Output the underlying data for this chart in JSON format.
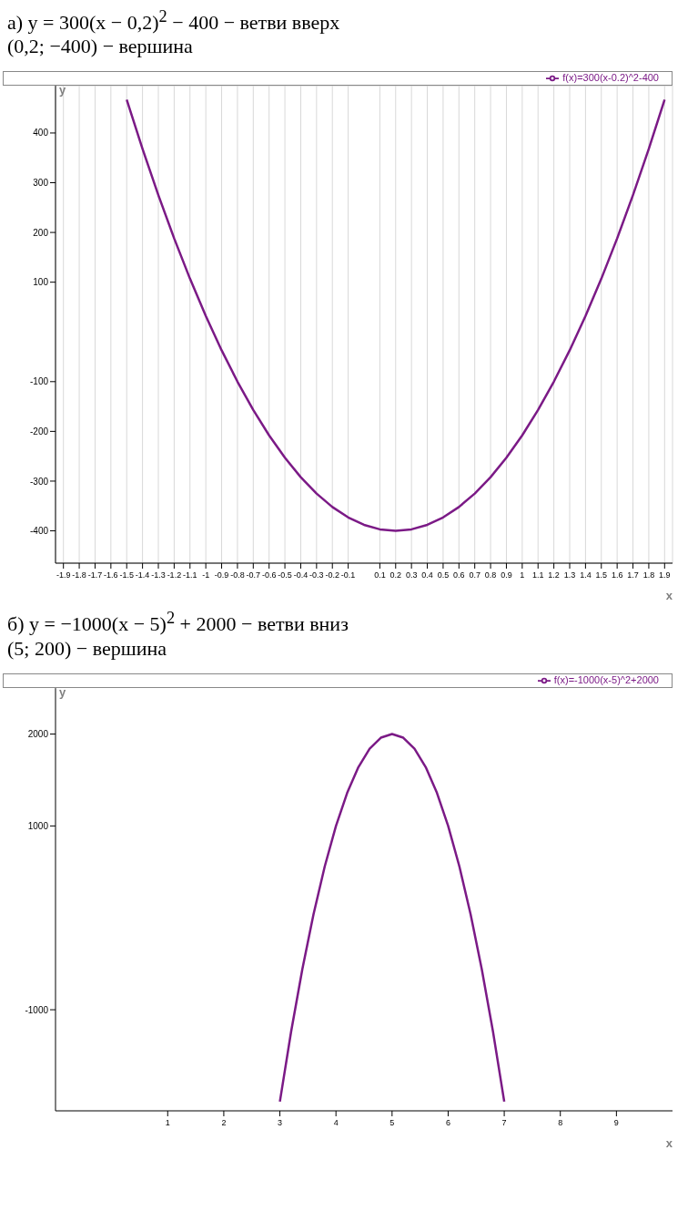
{
  "chart_data": [
    {
      "type": "line",
      "title": "а) y = 300(x − 0,2)$^{2}$ − 400 − ветви вверх",
      "subtitle": "(0,2; −400) − вершина",
      "xlabel": "x",
      "ylabel": "y",
      "x": [
        -1.5,
        -1.4,
        -1.3,
        -1.2,
        -1.1,
        -1.0,
        -0.9,
        -0.8,
        -0.7,
        -0.6,
        -0.5,
        -0.4,
        -0.3,
        -0.2,
        -0.1,
        0,
        0.1,
        0.2,
        0.3,
        0.4,
        0.5,
        0.6,
        0.7,
        0.8,
        0.9,
        1.0,
        1.1,
        1.2,
        1.3,
        1.4,
        1.5,
        1.6,
        1.7,
        1.8,
        1.9
      ],
      "series": [
        {
          "name": "f(x)=300(x-0.2)^2-400",
          "color": "#7b1a86",
          "values": [
            467,
            368,
            275,
            188,
            107,
            32,
            -37,
            -100,
            -157,
            -208,
            -253,
            -292,
            -325,
            -352,
            -373,
            -388,
            -397,
            -400,
            -397,
            -388,
            -373,
            -352,
            -325,
            -292,
            -253,
            -208,
            -157,
            -100,
            -37,
            32,
            107,
            188,
            275,
            368,
            467
          ]
        }
      ],
      "xlim": [
        -1.95,
        1.95
      ],
      "xticks": [
        -1.9,
        -1.8,
        -1.7,
        -1.6,
        -1.5,
        -1.4,
        -1.3,
        -1.2,
        -1.1,
        -1,
        -0.9,
        -0.8,
        -0.7,
        -0.6,
        -0.5,
        -0.4,
        -0.3,
        -0.2,
        -0.1,
        0.1,
        0.2,
        0.3,
        0.4,
        0.5,
        0.6,
        0.7,
        0.8,
        0.9,
        1,
        1.1,
        1.2,
        1.3,
        1.4,
        1.5,
        1.6,
        1.7,
        1.8,
        1.9
      ],
      "ylim": [
        -465,
        495
      ],
      "yticks": [
        -400,
        -300,
        -200,
        -100,
        100,
        200,
        300,
        400
      ],
      "grid": true,
      "legend": "top right",
      "marker": "none",
      "line_style": "solid"
    },
    {
      "type": "line",
      "title": "б) y = −1000(x − 5)$^{2}$ + 2000 − ветви вниз",
      "subtitle": "(5; 200) − вершина",
      "xlabel": "x",
      "ylabel": "y",
      "x": [
        3,
        3.2,
        3.4,
        3.6,
        3.8,
        4,
        4.2,
        4.4,
        4.6,
        4.8,
        5,
        5.2,
        5.4,
        5.6,
        5.8,
        6,
        6.2,
        6.4,
        6.6,
        6.8,
        7
      ],
      "series": [
        {
          "name": "f(x)=-1000(x-5)^2+2000",
          "color": "#7b1a86",
          "values": [
            -2000,
            -1240,
            -560,
            40,
            560,
            1000,
            1360,
            1640,
            1840,
            1960,
            2000,
            1960,
            1840,
            1640,
            1360,
            1000,
            560,
            40,
            -560,
            -1240,
            -2000
          ]
        }
      ],
      "xlim": [
        -1,
        10
      ],
      "xticks": [
        1,
        2,
        3,
        4,
        5,
        6,
        7,
        8,
        9
      ],
      "ylim": [
        -2100,
        2500
      ],
      "yticks": [
        -1000,
        1000,
        2000
      ],
      "grid": false,
      "legend": "top right",
      "marker": "none",
      "line_style": "solid"
    }
  ]
}
